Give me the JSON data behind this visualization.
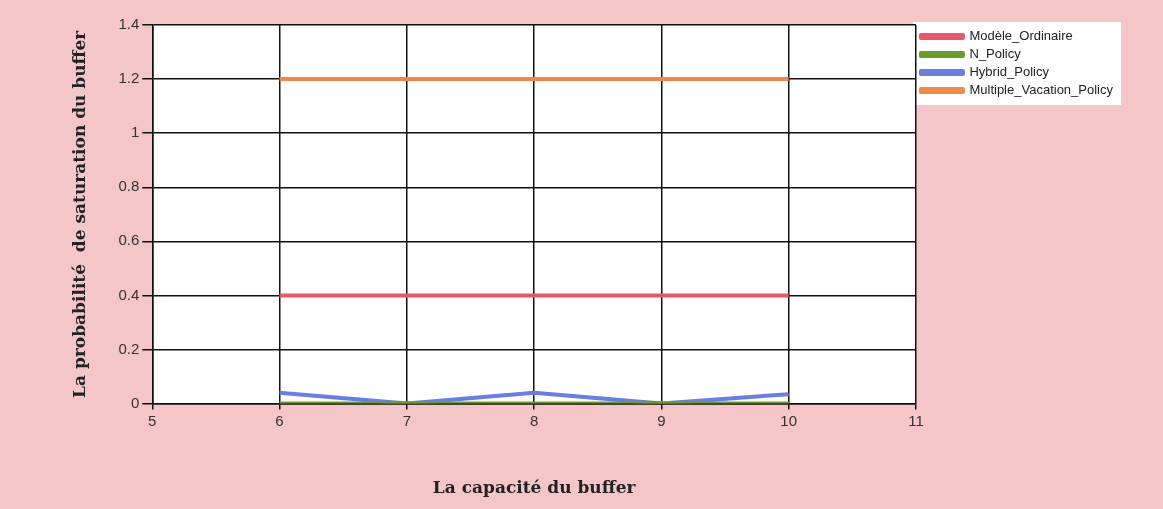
{
  "chart_data": {
    "type": "line",
    "xlabel": "La capacité du buffer",
    "ylabel": "La probabilité  de saturation du buffer",
    "x": [
      6,
      7,
      8,
      9,
      10
    ],
    "series": [
      {
        "name": "Modèle_Ordinaire",
        "color": "#e8566a",
        "values": [
          0.4,
          0.4,
          0.4,
          0.4,
          0.4
        ]
      },
      {
        "name": "N_Policy",
        "color": "#6b9a2e",
        "values": [
          0,
          0,
          0,
          0,
          0
        ]
      },
      {
        "name": "Hybrid_Policy",
        "color": "#6a7ee0",
        "values": [
          0.04,
          0,
          0.04,
          0,
          0.035
        ]
      },
      {
        "name": "Multiple_Vacation_Policy",
        "color": "#f08a4b",
        "values": [
          1.2,
          1.2,
          1.2,
          1.2,
          1.2
        ]
      }
    ],
    "xlim": [
      5,
      11
    ],
    "xticks": [
      5,
      6,
      7,
      8,
      9,
      10,
      11
    ],
    "ylim": [
      0,
      1.4
    ],
    "yticks": [
      0,
      0.2,
      0.4,
      0.6,
      0.8,
      1,
      1.2,
      1.4
    ],
    "grid": true,
    "legend": "top right",
    "marker": "none",
    "line_style": "solid"
  }
}
